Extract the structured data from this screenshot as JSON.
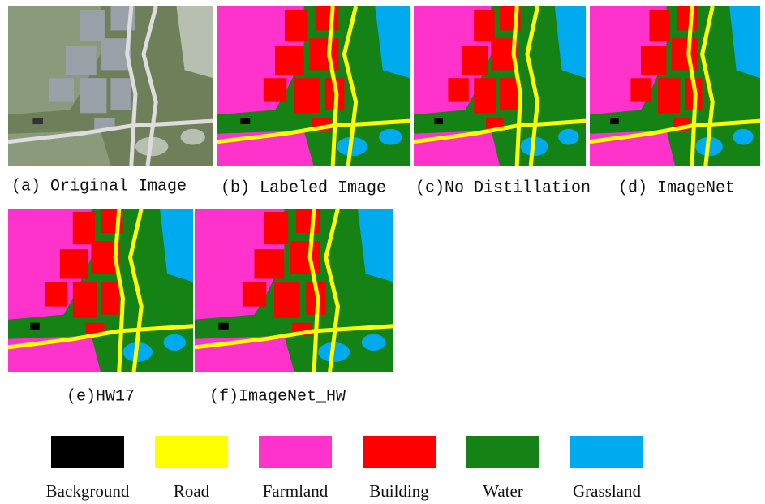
{
  "panels": [
    {
      "caption": "(a) Original Image"
    },
    {
      "caption": "(b) Labeled Image"
    },
    {
      "caption": "(c)No Distillation"
    },
    {
      "caption": "(d) ImageNet"
    },
    {
      "caption": "(e)HW17"
    },
    {
      "caption": "(f)ImageNet_HW"
    }
  ],
  "legend": [
    {
      "label": "Background",
      "color": "#000000"
    },
    {
      "label": "Road",
      "color": "#ffff00"
    },
    {
      "label": "Farmland",
      "color": "#ff33cc"
    },
    {
      "label": "Building",
      "color": "#ff0000"
    },
    {
      "label": "Water",
      "color": "#148214"
    },
    {
      "label": "Grassland",
      "color": "#00aaee"
    }
  ]
}
